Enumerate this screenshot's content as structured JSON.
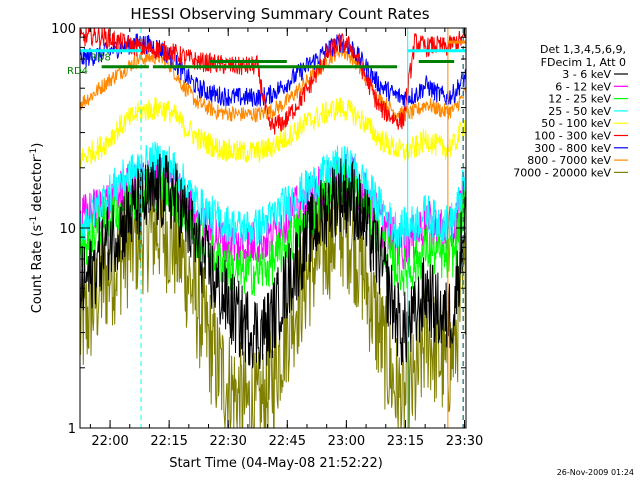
{
  "chart_data": {
    "type": "line",
    "title": "HESSI Observing Summary Count Rates",
    "xlabel": "Start Time (04-May-08 21:52:22)",
    "ylabel_parts": [
      "Count Rate (s",
      "-1",
      " detector",
      "-1",
      ")"
    ],
    "x_range_minutes": [
      0,
      98
    ],
    "x_ticks": [
      {
        "label": "22:00",
        "minute": 7.63
      },
      {
        "label": "22:15",
        "minute": 22.63
      },
      {
        "label": "22:30",
        "minute": 37.63
      },
      {
        "label": "22:45",
        "minute": 52.63
      },
      {
        "label": "23:00",
        "minute": 67.63
      },
      {
        "label": "23:15",
        "minute": 82.63
      },
      {
        "label": "23:30",
        "minute": 97.63
      }
    ],
    "y_scale": "log",
    "y_range": [
      1,
      100
    ],
    "y_ticks": [
      {
        "label": "1",
        "value": 1
      },
      {
        "label": "10",
        "value": 10
      },
      {
        "label": "100",
        "value": 100
      }
    ],
    "legend_title": [
      "Det 1,3,4,5,6,9,",
      "FDecim 1, Att 0"
    ],
    "legend_position": "right",
    "footer": "26-Nov-2009 01:24",
    "series": [
      {
        "name": "3 - 6 keV",
        "color": "#000000",
        "noise": 0.2,
        "x": [
          0,
          3,
          6,
          10,
          15,
          20,
          23,
          26,
          30,
          35,
          40,
          45,
          48,
          52,
          58,
          63,
          66,
          69,
          72,
          76,
          80,
          82,
          85,
          88,
          90,
          93,
          95,
          98
        ],
        "y": [
          5,
          6,
          8,
          10,
          13,
          15,
          15,
          12,
          8,
          5,
          3.5,
          3,
          3.2,
          5,
          9,
          13,
          15,
          14.5,
          11,
          7,
          3.8,
          3,
          3.5,
          5,
          4,
          3.5,
          4,
          13
        ]
      },
      {
        "name": "6 - 12 keV",
        "color": "#ff00ff",
        "noise": 0.12,
        "x": [
          0,
          3,
          6,
          10,
          15,
          20,
          23,
          26,
          30,
          35,
          40,
          45,
          48,
          52,
          58,
          63,
          66,
          69,
          72,
          76,
          80,
          82,
          85,
          88,
          90,
          93,
          95,
          98
        ],
        "y": [
          11,
          12,
          13,
          15,
          17,
          18,
          17,
          14,
          11,
          9,
          8,
          8.5,
          9,
          11,
          14,
          17,
          19,
          18,
          15,
          11,
          8.5,
          8,
          9,
          11,
          10,
          9.5,
          10,
          16
        ]
      },
      {
        "name": "12 - 25 keV",
        "color": "#00ff00",
        "noise": 0.12,
        "x": [
          0,
          3,
          6,
          10,
          15,
          20,
          23,
          26,
          30,
          35,
          40,
          45,
          48,
          52,
          58,
          63,
          66,
          69,
          72,
          76,
          80,
          82,
          85,
          88,
          90,
          93,
          95,
          98
        ],
        "y": [
          8,
          9,
          11,
          13,
          15,
          16,
          15,
          12,
          9,
          7,
          6,
          6,
          6.5,
          8,
          11,
          15,
          17,
          16,
          13,
          9,
          6.5,
          6,
          6.5,
          8,
          7.5,
          7,
          7.5,
          14
        ]
      },
      {
        "name": "25 - 50 keV",
        "color": "#00ffff",
        "noise": 0.1,
        "x": [
          0,
          3,
          6,
          10,
          15,
          20,
          23,
          26,
          30,
          35,
          40,
          45,
          48,
          52,
          58,
          63,
          66,
          69,
          72,
          76,
          80,
          82,
          85,
          88,
          90,
          93,
          95,
          98
        ],
        "y": [
          10,
          12,
          14,
          17,
          20,
          22,
          21,
          17,
          13,
          11,
          10,
          10,
          11,
          13,
          16,
          19,
          21,
          20,
          17,
          13,
          10,
          10,
          10.5,
          12,
          11,
          10.5,
          11,
          18
        ]
      },
      {
        "name": "50 - 100 keV",
        "color": "#ffff00",
        "noise": 0.06,
        "x": [
          0,
          3,
          6,
          10,
          15,
          20,
          23,
          26,
          30,
          35,
          40,
          45,
          48,
          52,
          58,
          63,
          66,
          69,
          72,
          76,
          80,
          82,
          85,
          88,
          90,
          93,
          95,
          98
        ],
        "y": [
          22,
          24,
          26,
          32,
          38,
          40,
          38,
          33,
          28,
          25,
          24,
          24,
          25,
          28,
          34,
          38,
          40,
          38,
          34,
          28,
          25,
          24,
          25,
          28,
          26,
          25,
          26,
          34
        ]
      },
      {
        "name": "100 - 300 keV",
        "color": "#ff0000",
        "noise": 0.05,
        "x": [
          0,
          3,
          6,
          10,
          15,
          20,
          23,
          26,
          30,
          35,
          40,
          45,
          48,
          52,
          58,
          63,
          66,
          69,
          72,
          76,
          80,
          82,
          85,
          88,
          90,
          93,
          95,
          98
        ],
        "y": [
          88,
          92,
          90,
          85,
          80,
          78,
          76,
          72,
          68,
          66,
          64,
          65,
          32,
          34,
          50,
          75,
          85,
          80,
          60,
          40,
          35,
          34,
          85,
          80,
          82,
          80,
          84,
          90
        ]
      },
      {
        "name": "300 - 800 keV",
        "color": "#0000ff",
        "noise": 0.05,
        "x": [
          0,
          3,
          6,
          10,
          15,
          20,
          23,
          26,
          30,
          35,
          40,
          45,
          48,
          52,
          58,
          63,
          66,
          69,
          72,
          76,
          80,
          82,
          85,
          88,
          90,
          93,
          95,
          98
        ],
        "y": [
          70,
          72,
          75,
          80,
          85,
          80,
          72,
          60,
          50,
          46,
          45,
          45,
          46,
          52,
          65,
          78,
          85,
          80,
          66,
          52,
          46,
          45,
          46,
          52,
          48,
          45,
          47,
          58
        ]
      },
      {
        "name": "800 - 7000 keV",
        "color": "#ff8800",
        "noise": 0.04,
        "x": [
          0,
          3,
          6,
          10,
          15,
          20,
          23,
          26,
          30,
          35,
          40,
          45,
          48,
          52,
          58,
          63,
          66,
          69,
          72,
          76,
          80,
          82,
          85,
          88,
          90,
          93,
          95,
          98
        ],
        "y": [
          42,
          46,
          52,
          60,
          70,
          72,
          65,
          52,
          42,
          38,
          37,
          37,
          38,
          42,
          55,
          70,
          78,
          72,
          58,
          44,
          38,
          37,
          38,
          42,
          40,
          38,
          39,
          48
        ]
      },
      {
        "name": "7000 - 20000 keV",
        "color": "#808000",
        "noise": 0.3,
        "x": [
          0,
          3,
          6,
          10,
          15,
          20,
          23,
          26,
          30,
          35,
          40,
          45,
          48,
          52,
          58,
          63,
          66,
          69,
          72,
          76,
          80,
          82,
          85,
          88,
          90,
          93,
          95,
          98
        ],
        "y": [
          3,
          4,
          5.5,
          7,
          9,
          10,
          9,
          7,
          4,
          2,
          1.4,
          1.2,
          1.5,
          3,
          6,
          8.5,
          10,
          9,
          6,
          3,
          1.6,
          1.3,
          1.6,
          3,
          2.5,
          2,
          2.5,
          6
        ]
      }
    ],
    "annotations": [
      {
        "text": "RD4",
        "x_minute": 0,
        "y": 61,
        "color": "#008000"
      },
      {
        "text": "RD8",
        "x_minute": 5.8,
        "y": 71,
        "color": "#008000"
      }
    ],
    "status_bars": [
      {
        "color": "#00ffff",
        "x_start": 0,
        "x_end": 15.5,
        "y": 77
      },
      {
        "color": "#00ffff",
        "x_start": 83.2,
        "x_end": 98,
        "y": 77
      },
      {
        "color": "#ff8800",
        "x_start": 93.5,
        "x_end": 98,
        "y": 85
      },
      {
        "color": "#008000",
        "x_start": 5.5,
        "x_end": 17.5,
        "y": 64
      },
      {
        "color": "#008000",
        "x_start": 18.5,
        "x_end": 80.5,
        "y": 64
      },
      {
        "color": "#008000",
        "x_start": 33,
        "x_end": 52.5,
        "y": 68
      },
      {
        "color": "#008000",
        "x_start": 86,
        "x_end": 95,
        "y": 68
      }
    ],
    "vertical_markers": [
      {
        "color": "#00ffff",
        "minute": 0,
        "style": "solid"
      },
      {
        "color": "#00ffff",
        "minute": 83.2,
        "style": "solid"
      },
      {
        "color": "#00ffff",
        "minute": 15.5,
        "style": "dashed"
      },
      {
        "color": "#00ffff",
        "minute": 97.2,
        "style": "dashed"
      },
      {
        "color": "#ff8800",
        "minute": 93.4,
        "style": "solid"
      },
      {
        "color": "#ff0000",
        "minute": 97.3,
        "style": "dashed"
      }
    ]
  }
}
